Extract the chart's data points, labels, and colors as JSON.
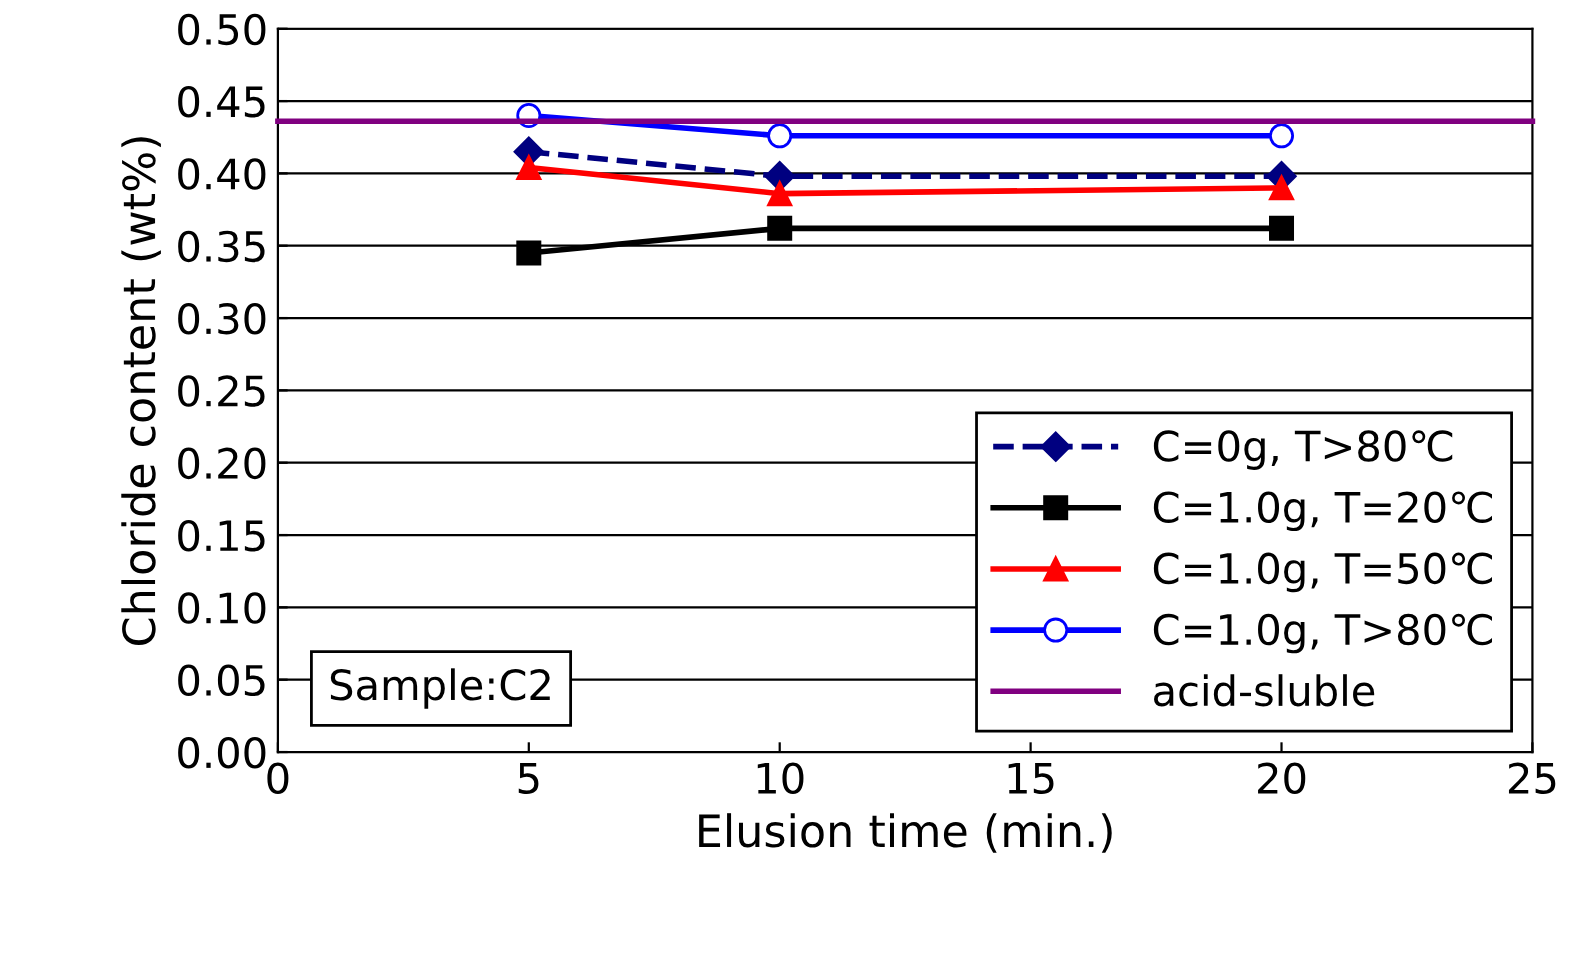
{
  "chart_data": {
    "type": "line",
    "xlabel": "Elusion time (min.)",
    "ylabel": "Chloride content (wt%)",
    "x": [
      5,
      10,
      20
    ],
    "series": [
      {
        "name": "C=0g, T>80℃",
        "color": "#000080",
        "values": [
          0.415,
          0.398,
          0.398
        ],
        "marker": "diamond",
        "line_style": "dashed"
      },
      {
        "name": "C=1.0g, T=20℃",
        "color": "#000000",
        "values": [
          0.345,
          0.362,
          0.362
        ],
        "marker": "square",
        "line_style": "solid"
      },
      {
        "name": "C=1.0g, T=50℃",
        "color": "#ff0000",
        "values": [
          0.404,
          0.386,
          0.39
        ],
        "marker": "triangle",
        "line_style": "solid"
      },
      {
        "name": "C=1.0g, T>80℃",
        "color": "#0000ff",
        "values": [
          0.44,
          0.426,
          0.426
        ],
        "marker": "circle",
        "line_style": "solid"
      },
      {
        "name": "acid-sluble",
        "color": "#800080",
        "x": [
          0,
          25
        ],
        "values": [
          0.436,
          0.436
        ],
        "marker": "none",
        "line_style": "solid"
      }
    ],
    "annotations": [
      "Sample:C2"
    ],
    "xlim": [
      0,
      25
    ],
    "xticks": [
      0,
      5,
      10,
      15,
      20,
      25
    ],
    "ylim": [
      0,
      0.5
    ],
    "yticks": [
      {
        "value": 0,
        "label": "0.00"
      },
      {
        "value": 0.05,
        "label": "0.05"
      },
      {
        "value": 0.1,
        "label": "0.10"
      },
      {
        "value": 0.15,
        "label": "0.15"
      },
      {
        "value": 0.2,
        "label": "0.20"
      },
      {
        "value": 0.25,
        "label": "0.25"
      },
      {
        "value": 0.3,
        "label": "0.30"
      },
      {
        "value": 0.35,
        "label": "0.35"
      },
      {
        "value": 0.4,
        "label": "0.40"
      },
      {
        "value": 0.45,
        "label": "0.45"
      },
      {
        "value": 0.5,
        "label": "0.50"
      }
    ],
    "grid": "y",
    "legend": "bottom right"
  }
}
